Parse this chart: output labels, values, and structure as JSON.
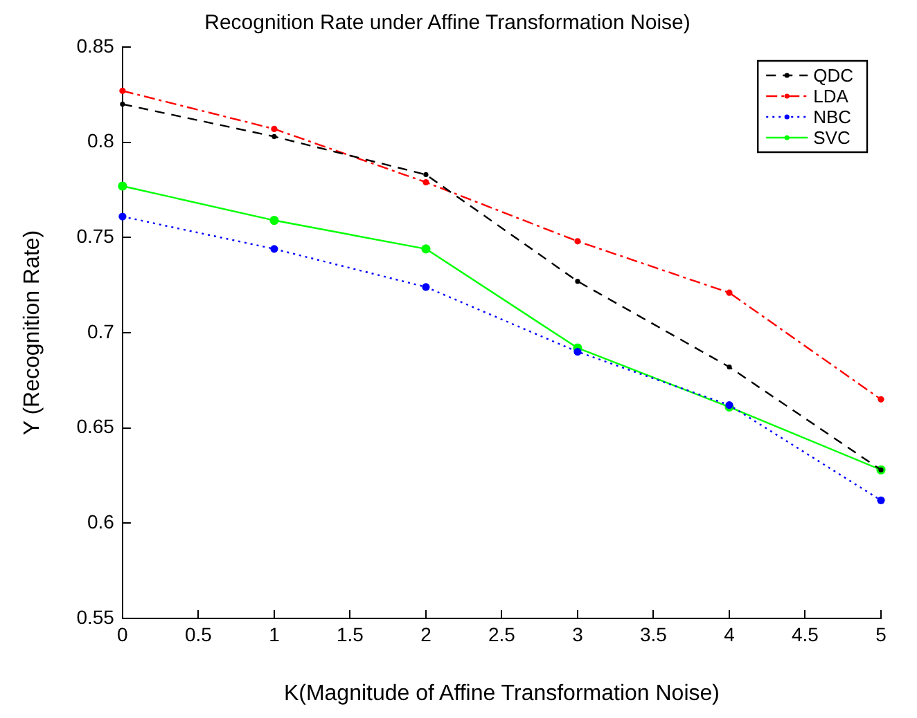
{
  "chart_data": {
    "type": "line",
    "title": "Recognition Rate under Affine Transformation Noise)",
    "xlabel": "K(Magnitude of Affine Transformation Noise)",
    "ylabel": "Y (Recognition Rate)",
    "x": [
      0,
      1,
      2,
      3,
      4,
      5
    ],
    "series": [
      {
        "name": "QDC",
        "color": "#000000",
        "line_style": "dashed",
        "values": [
          0.82,
          0.803,
          0.783,
          0.727,
          0.682,
          0.628
        ]
      },
      {
        "name": "LDA",
        "color": "#ff0000",
        "line_style": "dashdot",
        "values": [
          0.827,
          0.807,
          0.779,
          0.748,
          0.721,
          0.665
        ]
      },
      {
        "name": "NBC",
        "color": "#0000ff",
        "line_style": "dotted",
        "values": [
          0.761,
          0.744,
          0.724,
          0.69,
          0.662,
          0.612
        ]
      },
      {
        "name": "SVC",
        "color": "#00ff00",
        "line_style": "solid",
        "values": [
          0.777,
          0.759,
          0.744,
          0.692,
          0.661,
          0.628
        ]
      }
    ],
    "xlim": [
      0,
      5
    ],
    "xticks": [
      0,
      0.5,
      1,
      1.5,
      2,
      2.5,
      3,
      3.5,
      4,
      4.5,
      5
    ],
    "ylim": [
      0.55,
      0.85
    ],
    "yticks": [
      0.55,
      0.6,
      0.65,
      0.7,
      0.75,
      0.8,
      0.85
    ],
    "grid": false,
    "legend": "top right",
    "marker": "circle"
  }
}
